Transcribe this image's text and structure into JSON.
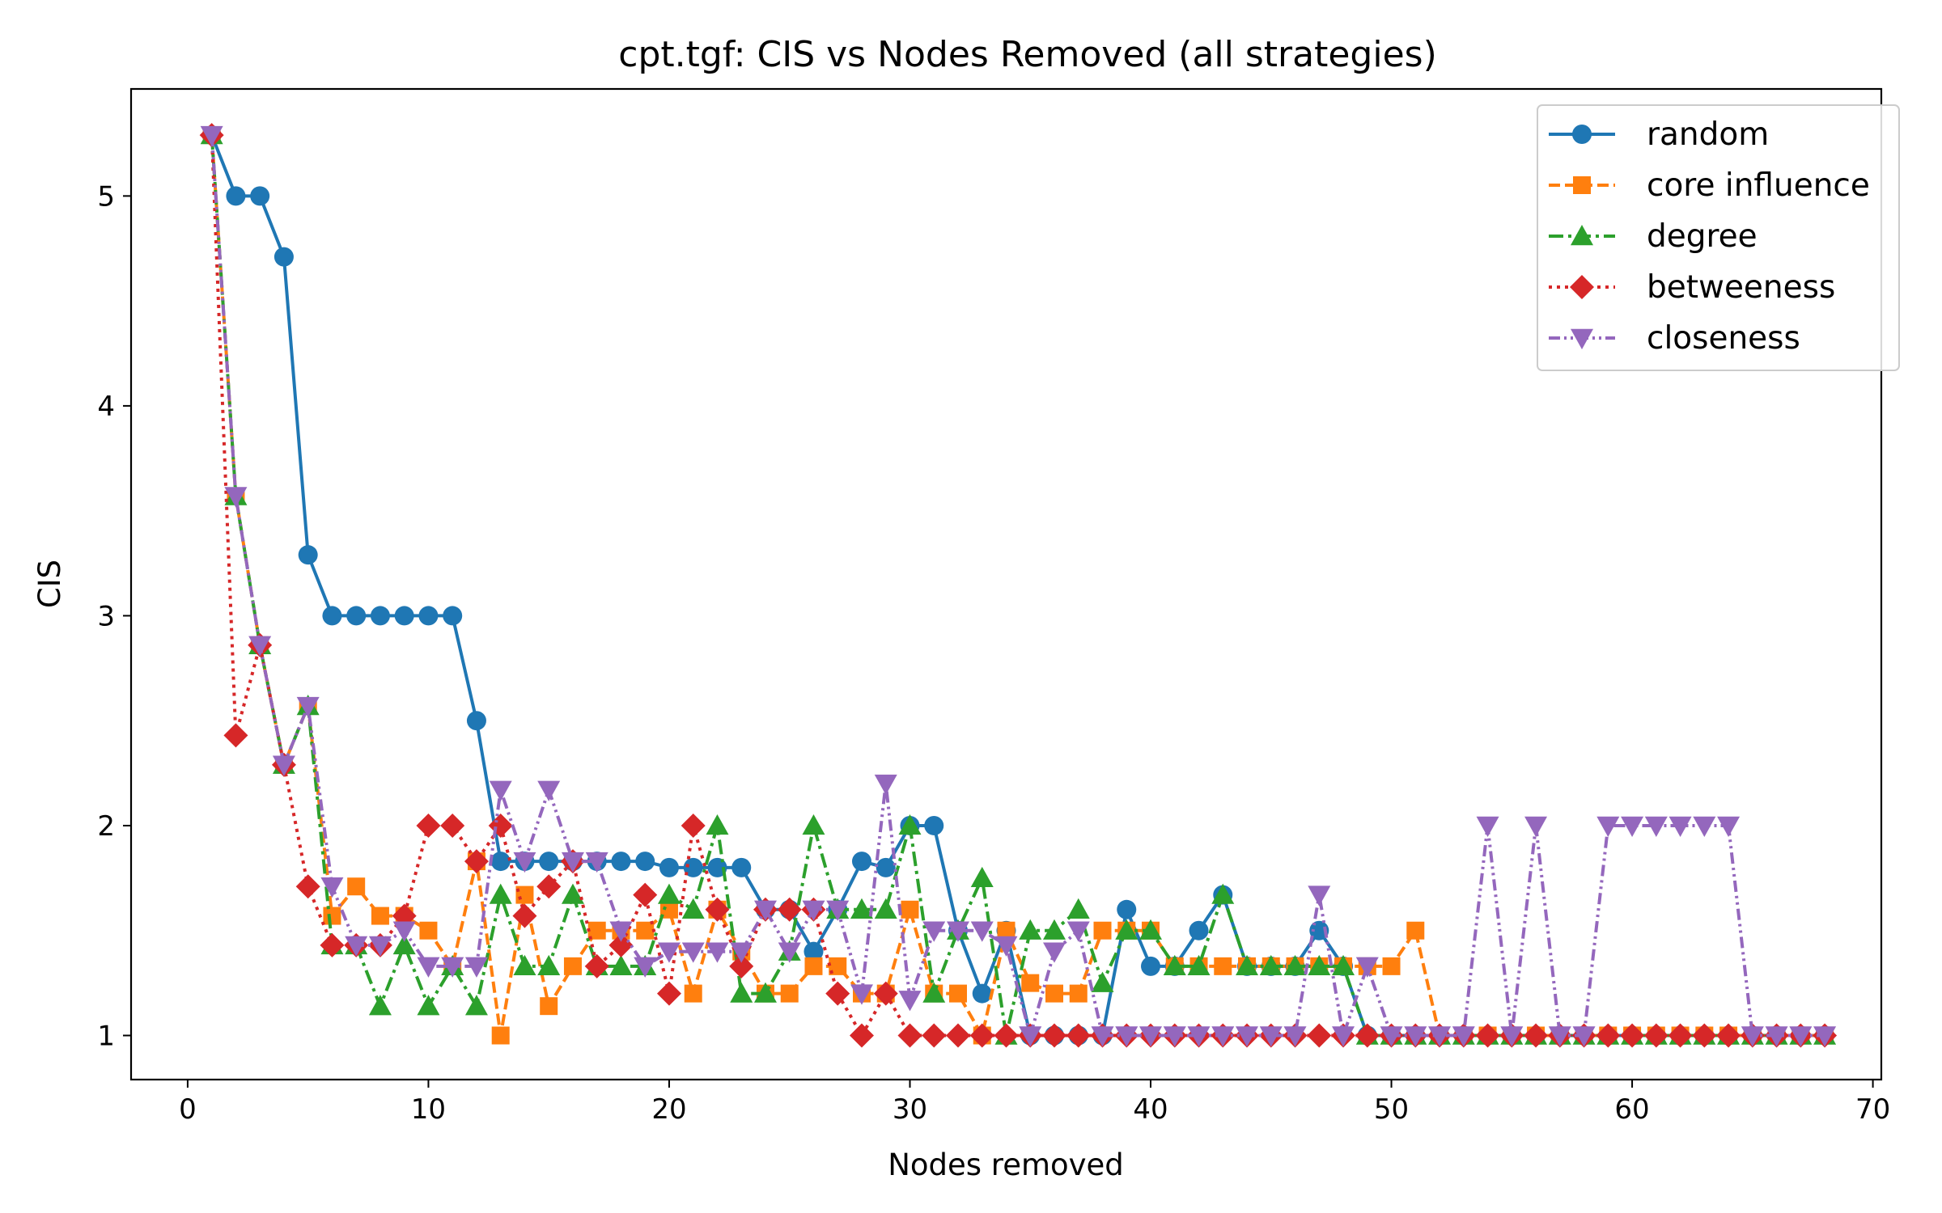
{
  "chart_data": {
    "type": "line",
    "title": "cpt.tgf: CIS vs Nodes Removed (all strategies)",
    "xlabel": "Nodes removed",
    "ylabel": "CIS",
    "xlim": [
      -2.35,
      70.35
    ],
    "ylim": [
      0.79,
      5.51
    ],
    "xticks": [
      0,
      10,
      20,
      30,
      40,
      50,
      60,
      70
    ],
    "yticks": [
      1,
      2,
      3,
      4,
      5
    ],
    "grid": false,
    "legend_placement": "top-right",
    "series": [
      {
        "name": "random",
        "color": "#1f77b4",
        "marker": "circle",
        "linestyle": "solid",
        "x": [
          1,
          2,
          3,
          4,
          5,
          6,
          7,
          8,
          9,
          10,
          11,
          12,
          13,
          14,
          15,
          16,
          17,
          18,
          19,
          20,
          21,
          22,
          23,
          24,
          25,
          26,
          27,
          28,
          29,
          30,
          31,
          32,
          33,
          34,
          35,
          36,
          37,
          38,
          39,
          40,
          41,
          42,
          43,
          44,
          45,
          46,
          47,
          48,
          49,
          50,
          51,
          52,
          53,
          54,
          55,
          56,
          57,
          58,
          59,
          60,
          61,
          62,
          63,
          64,
          65,
          66,
          67,
          68
        ],
        "y": [
          5.29,
          5.0,
          5.0,
          4.71,
          3.29,
          3.0,
          3.0,
          3.0,
          3.0,
          3.0,
          3.0,
          2.5,
          1.83,
          1.83,
          1.83,
          1.83,
          1.83,
          1.83,
          1.83,
          1.8,
          1.8,
          1.8,
          1.8,
          1.6,
          1.6,
          1.4,
          1.6,
          1.83,
          1.8,
          2.0,
          2.0,
          1.5,
          1.2,
          1.5,
          1.0,
          1.0,
          1.0,
          1.0,
          1.6,
          1.33,
          1.33,
          1.5,
          1.67,
          1.33,
          1.33,
          1.33,
          1.5,
          1.33,
          1.0,
          1.0,
          1.0,
          1.0,
          1.0,
          1.0,
          1.0,
          1.0,
          1.0,
          1.0,
          1.0,
          1.0,
          1.0,
          1.0,
          1.0,
          1.0,
          1.0,
          1.0,
          1.0,
          1.0
        ]
      },
      {
        "name": "core influence",
        "color": "#ff7f0e",
        "marker": "square",
        "linestyle": "dashed",
        "x": [
          1,
          2,
          3,
          4,
          5,
          6,
          7,
          8,
          9,
          10,
          11,
          12,
          13,
          14,
          15,
          16,
          17,
          18,
          19,
          20,
          21,
          22,
          23,
          24,
          25,
          26,
          27,
          28,
          29,
          30,
          31,
          32,
          33,
          34,
          35,
          36,
          37,
          38,
          39,
          40,
          41,
          42,
          43,
          44,
          45,
          46,
          47,
          48,
          49,
          50,
          51,
          52,
          53,
          54,
          55,
          56,
          57,
          58,
          59,
          60,
          61,
          62,
          63,
          64,
          65,
          66,
          67,
          68
        ],
        "y": [
          5.29,
          3.57,
          2.86,
          2.29,
          2.57,
          1.57,
          1.71,
          1.57,
          1.57,
          1.5,
          1.33,
          1.83,
          1.0,
          1.67,
          1.14,
          1.33,
          1.5,
          1.5,
          1.5,
          1.6,
          1.2,
          1.6,
          1.4,
          1.2,
          1.2,
          1.33,
          1.33,
          1.2,
          1.2,
          1.6,
          1.2,
          1.2,
          1.0,
          1.5,
          1.25,
          1.2,
          1.2,
          1.5,
          1.5,
          1.5,
          1.33,
          1.33,
          1.33,
          1.33,
          1.33,
          1.33,
          1.33,
          1.33,
          1.33,
          1.33,
          1.5,
          1.0,
          1.0,
          1.0,
          1.0,
          1.0,
          1.0,
          1.0,
          1.0,
          1.0,
          1.0,
          1.0,
          1.0,
          1.0,
          1.0,
          1.0,
          1.0,
          1.0
        ]
      },
      {
        "name": "degree",
        "color": "#2ca02c",
        "marker": "triangle-up",
        "linestyle": "dashdot",
        "x": [
          1,
          2,
          3,
          4,
          5,
          6,
          7,
          8,
          9,
          10,
          11,
          12,
          13,
          14,
          15,
          16,
          17,
          18,
          19,
          20,
          21,
          22,
          23,
          24,
          25,
          26,
          27,
          28,
          29,
          30,
          31,
          32,
          33,
          34,
          35,
          36,
          37,
          38,
          39,
          40,
          41,
          42,
          43,
          44,
          45,
          46,
          47,
          48,
          49,
          50,
          51,
          52,
          53,
          54,
          55,
          56,
          57,
          58,
          59,
          60,
          61,
          62,
          63,
          64,
          65,
          66,
          67,
          68
        ],
        "y": [
          5.29,
          3.57,
          2.86,
          2.29,
          2.57,
          1.43,
          1.43,
          1.14,
          1.43,
          1.14,
          1.33,
          1.14,
          1.67,
          1.33,
          1.33,
          1.67,
          1.33,
          1.33,
          1.33,
          1.67,
          1.6,
          2.0,
          1.2,
          1.2,
          1.4,
          2.0,
          1.6,
          1.6,
          1.6,
          2.0,
          1.2,
          1.5,
          1.75,
          1.0,
          1.5,
          1.5,
          1.6,
          1.25,
          1.5,
          1.5,
          1.33,
          1.33,
          1.67,
          1.33,
          1.33,
          1.33,
          1.33,
          1.33,
          1.0,
          1.0,
          1.0,
          1.0,
          1.0,
          1.0,
          1.0,
          1.0,
          1.0,
          1.0,
          1.0,
          1.0,
          1.0,
          1.0,
          1.0,
          1.0,
          1.0,
          1.0,
          1.0,
          1.0
        ]
      },
      {
        "name": "betweeness",
        "color": "#d62728",
        "marker": "diamond",
        "linestyle": "dotted",
        "x": [
          1,
          2,
          3,
          4,
          5,
          6,
          7,
          8,
          9,
          10,
          11,
          12,
          13,
          14,
          15,
          16,
          17,
          18,
          19,
          20,
          21,
          22,
          23,
          24,
          25,
          26,
          27,
          28,
          29,
          30,
          31,
          32,
          33,
          34,
          35,
          36,
          37,
          38,
          39,
          40,
          41,
          42,
          43,
          44,
          45,
          46,
          47,
          48,
          49,
          50,
          51,
          52,
          53,
          54,
          55,
          56,
          57,
          58,
          59,
          60,
          61,
          62,
          63,
          64,
          65,
          66,
          67,
          68
        ],
        "y": [
          5.29,
          2.43,
          2.86,
          2.29,
          1.71,
          1.43,
          1.43,
          1.43,
          1.57,
          2.0,
          2.0,
          1.83,
          2.0,
          1.57,
          1.71,
          1.83,
          1.33,
          1.43,
          1.67,
          1.2,
          2.0,
          1.6,
          1.33,
          1.6,
          1.6,
          1.6,
          1.2,
          1.0,
          1.2,
          1.0,
          1.0,
          1.0,
          1.0,
          1.0,
          1.0,
          1.0,
          1.0,
          1.0,
          1.0,
          1.0,
          1.0,
          1.0,
          1.0,
          1.0,
          1.0,
          1.0,
          1.0,
          1.0,
          1.0,
          1.0,
          1.0,
          1.0,
          1.0,
          1.0,
          1.0,
          1.0,
          1.0,
          1.0,
          1.0,
          1.0,
          1.0,
          1.0,
          1.0,
          1.0,
          1.0,
          1.0,
          1.0,
          1.0
        ]
      },
      {
        "name": "closeness",
        "color": "#9467bd",
        "marker": "triangle-down",
        "linestyle": "dashdotdot",
        "x": [
          1,
          2,
          3,
          4,
          5,
          6,
          7,
          8,
          9,
          10,
          11,
          12,
          13,
          14,
          15,
          16,
          17,
          18,
          19,
          20,
          21,
          22,
          23,
          24,
          25,
          26,
          27,
          28,
          29,
          30,
          31,
          32,
          33,
          34,
          35,
          36,
          37,
          38,
          39,
          40,
          41,
          42,
          43,
          44,
          45,
          46,
          47,
          48,
          49,
          50,
          51,
          52,
          53,
          54,
          55,
          56,
          57,
          58,
          59,
          60,
          61,
          62,
          63,
          64,
          65,
          66,
          67,
          68
        ],
        "y": [
          5.29,
          3.57,
          2.86,
          2.29,
          2.57,
          1.71,
          1.43,
          1.43,
          1.5,
          1.33,
          1.33,
          1.33,
          2.17,
          1.83,
          2.17,
          1.83,
          1.83,
          1.5,
          1.33,
          1.4,
          1.4,
          1.4,
          1.4,
          1.6,
          1.4,
          1.6,
          1.6,
          1.2,
          2.2,
          1.17,
          1.5,
          1.5,
          1.5,
          1.43,
          1.0,
          1.4,
          1.5,
          1.0,
          1.0,
          1.0,
          1.0,
          1.0,
          1.0,
          1.0,
          1.0,
          1.0,
          1.67,
          1.0,
          1.33,
          1.0,
          1.0,
          1.0,
          1.0,
          2.0,
          1.0,
          2.0,
          1.0,
          1.0,
          2.0,
          2.0,
          2.0,
          2.0,
          2.0,
          2.0,
          1.0,
          1.0,
          1.0,
          1.0
        ]
      }
    ]
  }
}
